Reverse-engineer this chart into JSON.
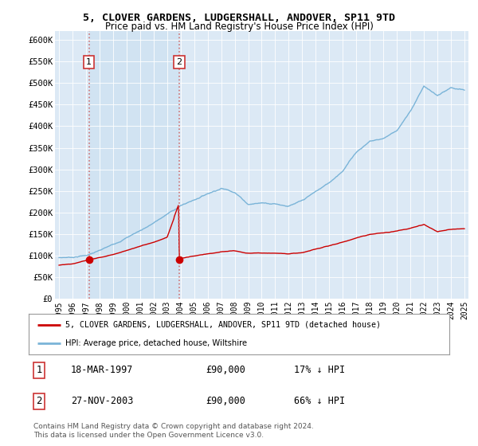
{
  "title": "5, CLOVER GARDENS, LUDGERSHALL, ANDOVER, SP11 9TD",
  "subtitle": "Price paid vs. HM Land Registry's House Price Index (HPI)",
  "ylabel_ticks": [
    "£0",
    "£50K",
    "£100K",
    "£150K",
    "£200K",
    "£250K",
    "£300K",
    "£350K",
    "£400K",
    "£450K",
    "£500K",
    "£550K",
    "£600K"
  ],
  "ytick_values": [
    0,
    50000,
    100000,
    150000,
    200000,
    250000,
    300000,
    350000,
    400000,
    450000,
    500000,
    550000,
    600000
  ],
  "ylim": [
    0,
    620000
  ],
  "xlim_start": 1994.7,
  "xlim_end": 2025.3,
  "plot_bg_color": "#dce9f5",
  "shade_color": "#d0e4f5",
  "hpi_color": "#7ab4d8",
  "price_color": "#cc0000",
  "marker_color": "#cc0000",
  "dashed_line_color": "#cc6666",
  "sale1_x": 1997.21,
  "sale1_y": 90000,
  "sale1_label": "1",
  "sale1_date": "18-MAR-1997",
  "sale1_price": "£90,000",
  "sale1_hpi": "17% ↓ HPI",
  "sale2_x": 2003.9,
  "sale2_y": 90000,
  "sale2_label": "2",
  "sale2_date": "27-NOV-2003",
  "sale2_price": "£90,000",
  "sale2_hpi": "66% ↓ HPI",
  "legend_line1": "5, CLOVER GARDENS, LUDGERSHALL, ANDOVER, SP11 9TD (detached house)",
  "legend_line2": "HPI: Average price, detached house, Wiltshire",
  "footer1": "Contains HM Land Registry data © Crown copyright and database right 2024.",
  "footer2": "This data is licensed under the Open Government Licence v3.0.",
  "hpi_knots": [
    1995,
    1996,
    1997,
    1998,
    1999,
    2000,
    2001,
    2002,
    2003,
    2004,
    2005,
    2006,
    2007,
    2008,
    2009,
    2010,
    2011,
    2012,
    2013,
    2014,
    2015,
    2016,
    2017,
    2018,
    2019,
    2020,
    2021,
    2022,
    2023,
    2024,
    2025
  ],
  "hpi_vals": [
    95000,
    97000,
    102000,
    112000,
    125000,
    143000,
    160000,
    178000,
    198000,
    218000,
    232000,
    248000,
    262000,
    255000,
    228000,
    232000,
    232000,
    228000,
    238000,
    258000,
    278000,
    308000,
    352000,
    378000,
    385000,
    405000,
    448000,
    508000,
    485000,
    500000,
    492000
  ],
  "price_knots": [
    1995,
    1996,
    1997,
    1998,
    1999,
    2000,
    2001,
    2002,
    2003,
    2003.85,
    2003.9,
    2004,
    2005,
    2006,
    2007,
    2008,
    2009,
    2010,
    2011,
    2012,
    2013,
    2014,
    2015,
    2016,
    2017,
    2018,
    2019,
    2020,
    2021,
    2022,
    2023,
    2024,
    2025
  ],
  "price_vals": [
    78000,
    80000,
    88000,
    95000,
    103000,
    113000,
    123000,
    133000,
    145000,
    218000,
    90000,
    95000,
    100000,
    105000,
    110000,
    112000,
    107000,
    108000,
    109000,
    108000,
    110000,
    118000,
    125000,
    133000,
    143000,
    150000,
    153000,
    158000,
    165000,
    175000,
    158000,
    163000,
    165000
  ]
}
